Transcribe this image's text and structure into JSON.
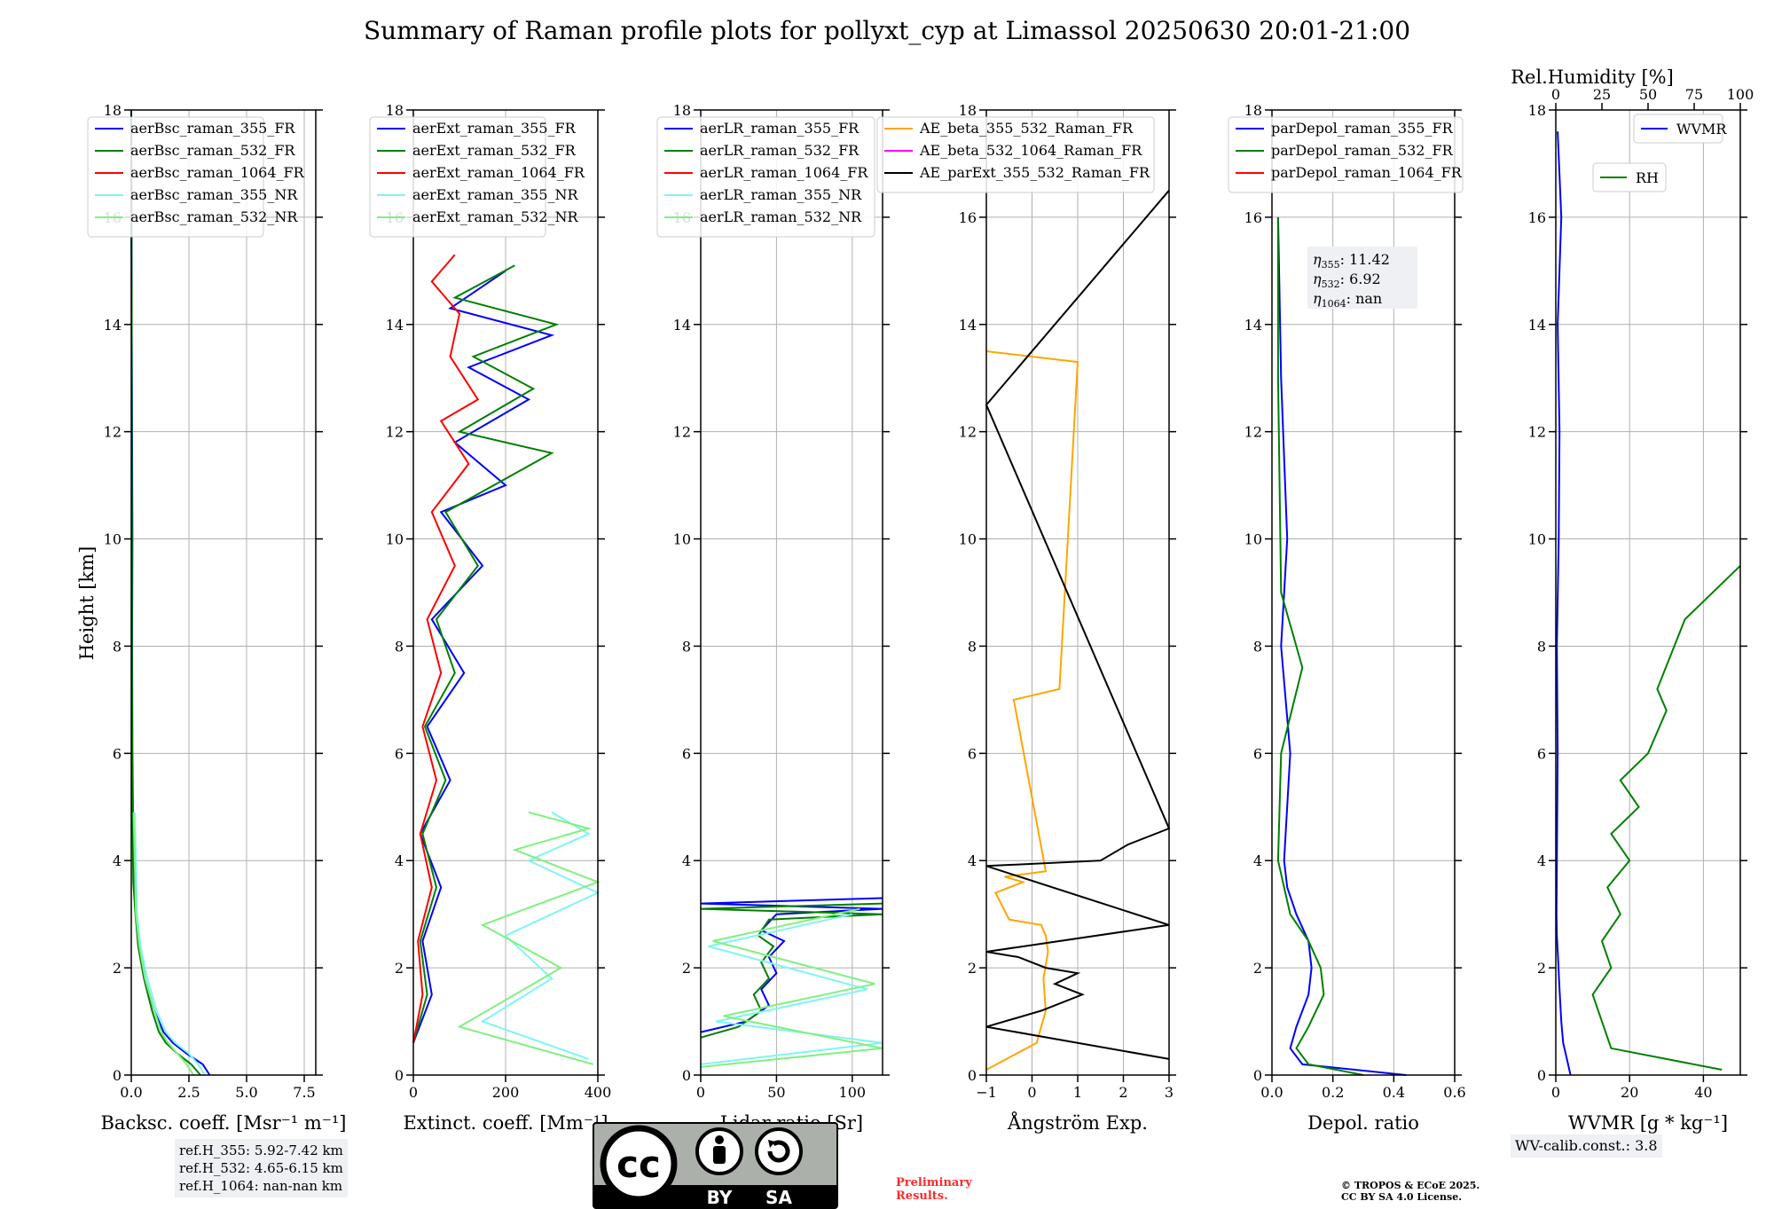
{
  "title": "Summary of Raman profile plots for pollyxt_cyp at Limassol 20250630 20:01-21:00",
  "colors": {
    "blue": "#0000ff",
    "green": "#008000",
    "red": "#ff0000",
    "cyan": "#7ff5f0",
    "lightgreen": "#80f080",
    "orange": "#ffa500",
    "magenta": "#ff00ff",
    "black": "#000000"
  },
  "chart_data": [
    {
      "type": "line",
      "panel": "backscatter",
      "ylabel": "Height [km]",
      "ylim": [
        0,
        18
      ],
      "yticks": [
        "0",
        "2",
        "4",
        "6",
        "8",
        "10",
        "12",
        "14",
        "16",
        "18"
      ],
      "xlabel": "Backsc. coeff. [Msr⁻¹ m⁻¹]",
      "xlim": [
        0,
        8
      ],
      "xticks": [
        "0.0",
        "2.5",
        "5.0",
        "7.5"
      ],
      "xtick_values": [
        0,
        2.5,
        5.0,
        7.5
      ],
      "legend_position": "top-left",
      "series": [
        {
          "name": "aerBsc_raman_355_FR",
          "color": "blue",
          "x": [
            3.4,
            3.1,
            2.4,
            1.8,
            1.4,
            1.0,
            0.6,
            0.35,
            0.2,
            0.1,
            0.08,
            0.05,
            0.04,
            0.05,
            0.03,
            0.02,
            0.01,
            0.0
          ],
          "y": [
            0.0,
            0.2,
            0.4,
            0.6,
            0.8,
            1.2,
            1.8,
            2.4,
            3.0,
            3.6,
            4.5,
            6,
            8,
            10,
            12.8,
            14,
            16,
            18
          ]
        },
        {
          "name": "aerBsc_raman_532_FR",
          "color": "green",
          "x": [
            3.0,
            2.6,
            2.0,
            1.5,
            1.2,
            0.9,
            0.55,
            0.3,
            0.18,
            0.09,
            0.06,
            0.04,
            0.03,
            0.03,
            0.02,
            0.02,
            0.01,
            0.0
          ],
          "y": [
            0.0,
            0.2,
            0.4,
            0.6,
            0.8,
            1.2,
            1.8,
            2.4,
            3.0,
            3.6,
            4.5,
            6,
            8,
            10,
            12.8,
            14,
            16,
            18
          ]
        },
        {
          "name": "aerBsc_raman_1064_FR",
          "color": "red",
          "x": [],
          "y": []
        },
        {
          "name": "aerBsc_raman_355_NR",
          "color": "cyan",
          "x": [
            3.2,
            2.9,
            2.5,
            1.9,
            1.5,
            1.1,
            0.7,
            0.4,
            0.25,
            0.2,
            0.15
          ],
          "y": [
            0.0,
            0.2,
            0.4,
            0.6,
            0.8,
            1.2,
            1.8,
            2.4,
            3.0,
            4.0,
            4.9
          ]
        },
        {
          "name": "aerBsc_raman_532_NR",
          "color": "lightgreen",
          "x": [
            2.7,
            2.4,
            2.0,
            1.6,
            1.3,
            1.0,
            0.6,
            0.35,
            0.2,
            0.15,
            0.1
          ],
          "y": [
            0.0,
            0.2,
            0.4,
            0.6,
            0.8,
            1.2,
            1.8,
            2.4,
            3.0,
            4.0,
            4.9
          ]
        }
      ]
    },
    {
      "type": "line",
      "panel": "extinction",
      "ylim": [
        0,
        18
      ],
      "yticks": [
        "0",
        "2",
        "4",
        "6",
        "8",
        "10",
        "12",
        "14",
        "16",
        "18"
      ],
      "xlabel": "Extinct. coeff. [Mm⁻¹]",
      "xlim": [
        0,
        400
      ],
      "xticks": [
        "0",
        "200",
        "400"
      ],
      "xtick_values": [
        0,
        200,
        400
      ],
      "legend_position": "top-left",
      "series": [
        {
          "name": "aerExt_raman_355_FR",
          "color": "blue",
          "x": [
            0,
            40,
            20,
            60,
            15,
            80,
            30,
            110,
            40,
            150,
            60,
            200,
            90,
            250,
            120,
            300,
            80,
            200
          ],
          "y": [
            0.6,
            1.5,
            2.5,
            3.5,
            4.5,
            5.5,
            6.5,
            7.5,
            8.5,
            9.5,
            10.5,
            11.0,
            11.8,
            12.6,
            13.2,
            13.8,
            14.3,
            15.0
          ]
        },
        {
          "name": "aerExt_raman_532_FR",
          "color": "green",
          "x": [
            0,
            30,
            15,
            50,
            20,
            70,
            25,
            90,
            50,
            140,
            70,
            300,
            100,
            260,
            130,
            310,
            90,
            220
          ],
          "y": [
            0.6,
            1.5,
            2.5,
            3.5,
            4.5,
            5.5,
            6.5,
            7.5,
            8.5,
            9.5,
            10.5,
            11.6,
            12.0,
            12.8,
            13.4,
            14.0,
            14.5,
            15.1
          ]
        },
        {
          "name": "aerExt_raman_1064_FR",
          "color": "red",
          "x": [
            0,
            20,
            10,
            40,
            15,
            50,
            20,
            60,
            30,
            90,
            40,
            120,
            60,
            140,
            80,
            100,
            40,
            90
          ],
          "y": [
            0.6,
            1.5,
            2.5,
            3.5,
            4.5,
            5.5,
            6.5,
            7.5,
            8.5,
            9.5,
            10.5,
            11.4,
            12.2,
            12.6,
            13.4,
            14.2,
            14.8,
            15.3
          ]
        },
        {
          "name": "aerExt_raman_355_NR",
          "color": "cyan",
          "x": [
            380,
            150,
            300,
            200,
            400,
            250,
            380,
            300
          ],
          "y": [
            0.3,
            1.0,
            1.8,
            2.6,
            3.4,
            4.0,
            4.5,
            4.9
          ]
        },
        {
          "name": "aerExt_raman_532_NR",
          "color": "lightgreen",
          "x": [
            390,
            100,
            320,
            150,
            400,
            220,
            380,
            250
          ],
          "y": [
            0.2,
            0.9,
            2.0,
            2.8,
            3.6,
            4.2,
            4.6,
            4.9
          ]
        }
      ]
    },
    {
      "type": "line",
      "panel": "lidar_ratio",
      "ylim": [
        0,
        18
      ],
      "yticks": [
        "0",
        "2",
        "4",
        "6",
        "8",
        "10",
        "12",
        "14",
        "16",
        "18"
      ],
      "xlabel": "Lidar ratio [Sr]",
      "xlim": [
        0,
        120
      ],
      "xticks": [
        "0",
        "50",
        "100"
      ],
      "xtick_values": [
        0,
        50,
        100
      ],
      "legend_position": "top-left",
      "series": [
        {
          "name": "aerLR_raman_355_FR",
          "color": "blue",
          "x": [
            0,
            30,
            45,
            40,
            50,
            45,
            55,
            40,
            50,
            120,
            0,
            120
          ],
          "y": [
            0.8,
            1.0,
            1.3,
            1.6,
            1.9,
            2.2,
            2.5,
            2.7,
            3.0,
            3.1,
            3.2,
            3.3
          ]
        },
        {
          "name": "aerLR_raman_532_FR",
          "color": "green",
          "x": [
            0,
            25,
            40,
            35,
            45,
            40,
            48,
            38,
            45,
            120,
            0,
            120
          ],
          "y": [
            0.7,
            0.9,
            1.2,
            1.5,
            1.8,
            2.1,
            2.4,
            2.6,
            2.9,
            3.0,
            3.1,
            3.2
          ]
        },
        {
          "name": "aerLR_raman_1064_FR",
          "color": "red",
          "x": [],
          "y": []
        },
        {
          "name": "aerLR_raman_355_NR",
          "color": "cyan",
          "x": [
            0,
            120,
            10,
            110,
            5,
            100
          ],
          "y": [
            0.2,
            0.6,
            1.0,
            1.6,
            2.4,
            3.0
          ]
        },
        {
          "name": "aerLR_raman_532_NR",
          "color": "lightgreen",
          "x": [
            0,
            120,
            15,
            115,
            8,
            105
          ],
          "y": [
            0.15,
            0.5,
            1.1,
            1.7,
            2.5,
            3.1
          ]
        }
      ]
    },
    {
      "type": "line",
      "panel": "angstrom",
      "ylim": [
        0,
        18
      ],
      "yticks": [
        "0",
        "2",
        "4",
        "6",
        "8",
        "10",
        "12",
        "14",
        "16",
        "18"
      ],
      "xlabel": "Ångström Exp.",
      "xlim": [
        -1,
        3
      ],
      "xticks": [
        "−1",
        "0",
        "1",
        "2",
        "3"
      ],
      "xtick_values": [
        -1,
        0,
        1,
        2,
        3
      ],
      "legend_position": "top-left",
      "series": [
        {
          "name": "AE_beta_355_532_Raman_FR",
          "color": "orange",
          "x": [
            -1.0,
            0.1,
            0.3,
            0.25,
            0.35,
            0.3,
            0.2,
            -0.5,
            -0.8,
            -0.2,
            -0.6,
            0.3,
            -0.4,
            0.6,
            1.0,
            -1.0
          ],
          "y": [
            0.1,
            0.6,
            1.2,
            1.8,
            2.3,
            2.6,
            2.8,
            2.9,
            3.4,
            3.6,
            3.7,
            3.8,
            7.0,
            7.2,
            13.3,
            13.5
          ]
        },
        {
          "name": "AE_beta_532_1064_Raman_FR",
          "color": "magenta",
          "x": [],
          "y": []
        },
        {
          "name": "AE_parExt_355_532_Raman_FR",
          "color": "black",
          "x": [
            3.0,
            -1.0,
            0.2,
            1.1,
            0.5,
            1.0,
            0.3,
            -0.3,
            -1.0,
            3.0,
            -1.0,
            1.5,
            2.1,
            3.0,
            -1.0,
            3.0
          ],
          "y": [
            0.3,
            0.9,
            1.2,
            1.5,
            1.7,
            1.9,
            2.0,
            2.2,
            2.3,
            2.8,
            3.9,
            4.0,
            4.3,
            4.6,
            12.5,
            16.5
          ]
        }
      ]
    },
    {
      "type": "line",
      "panel": "depolarization",
      "ylim": [
        0,
        18
      ],
      "yticks": [
        "0",
        "2",
        "4",
        "6",
        "8",
        "10",
        "12",
        "14",
        "16",
        "18"
      ],
      "xlabel": "Depol. ratio",
      "xlim": [
        0.0,
        0.6
      ],
      "xticks": [
        "0.0",
        "0.2",
        "0.4",
        "0.6"
      ],
      "xtick_values": [
        0.0,
        0.2,
        0.4,
        0.6
      ],
      "legend_position": "top-left",
      "series": [
        {
          "name": "parDepol_raman_355_FR",
          "color": "blue",
          "x": [
            0.44,
            0.1,
            0.06,
            0.08,
            0.12,
            0.13,
            0.12,
            0.08,
            0.05,
            0.04,
            0.06,
            0.03,
            0.05,
            0.03,
            0.02
          ],
          "y": [
            0.0,
            0.2,
            0.5,
            0.9,
            1.5,
            2.0,
            2.5,
            3.0,
            3.5,
            4.0,
            6.0,
            8.0,
            10.0,
            13.0,
            16.0
          ]
        },
        {
          "name": "parDepol_raman_532_FR",
          "color": "green",
          "x": [
            0.3,
            0.12,
            0.08,
            0.12,
            0.17,
            0.16,
            0.12,
            0.06,
            0.04,
            0.02,
            0.03,
            0.1,
            0.03,
            0.02,
            0.02
          ],
          "y": [
            0.0,
            0.2,
            0.5,
            0.9,
            1.5,
            2.0,
            2.5,
            3.0,
            3.5,
            4.0,
            6.0,
            7.6,
            9.0,
            13.0,
            16.0
          ]
        },
        {
          "name": "parDepol_raman_1064_FR",
          "color": "red",
          "x": [],
          "y": []
        }
      ],
      "annotations": [
        "11.42",
        "6.92",
        "nan"
      ]
    },
    {
      "type": "line",
      "panel": "water_vapor",
      "ylim": [
        0,
        18
      ],
      "yticks": [
        "0",
        "2",
        "4",
        "6",
        "8",
        "10",
        "12",
        "14",
        "16",
        "18"
      ],
      "xlabel": "WVMR [g * kg⁻¹]",
      "xlim": [
        0,
        50
      ],
      "xticks": [
        "0",
        "20",
        "40"
      ],
      "xtick_values": [
        0,
        20,
        40
      ],
      "x2label": "Rel.Humidity [%]",
      "x2lim": [
        0,
        100
      ],
      "x2ticks": [
        "0",
        "25",
        "50",
        "75",
        "100"
      ],
      "x2tick_values": [
        0,
        25,
        50,
        75,
        100
      ],
      "legend_position": "top-right",
      "series": [
        {
          "name": "WVMR",
          "color": "blue",
          "axis": "bottom",
          "x": [
            4.0,
            3.0,
            2.0,
            1.5,
            1.0,
            0.6,
            0.3,
            0.2,
            0.5,
            0.3,
            0.8,
            1.0,
            0.5,
            1.5,
            0.5
          ],
          "y": [
            0.0,
            0.3,
            0.6,
            1.0,
            1.6,
            2.2,
            2.6,
            3.0,
            6.0,
            8.0,
            10.0,
            12.0,
            14.0,
            16.0,
            17.6
          ]
        },
        {
          "name": "RH",
          "color": "green",
          "axis": "top",
          "x": [
            90,
            30,
            25,
            20,
            30,
            25,
            35,
            28,
            40,
            30,
            45,
            35,
            50,
            60,
            55,
            70,
            100
          ],
          "y": [
            0.1,
            0.5,
            1.0,
            1.5,
            2.0,
            2.5,
            3.0,
            3.5,
            4.0,
            4.5,
            5.0,
            5.5,
            6.0,
            6.8,
            7.2,
            8.5,
            9.5
          ]
        }
      ]
    }
  ],
  "legends": {
    "bsc": [
      "aerBsc_raman_355_FR",
      "aerBsc_raman_532_FR",
      "aerBsc_raman_1064_FR",
      "aerBsc_raman_355_NR",
      "aerBsc_raman_532_NR"
    ],
    "ext": [
      "aerExt_raman_355_FR",
      "aerExt_raman_532_FR",
      "aerExt_raman_1064_FR",
      "aerExt_raman_355_NR",
      "aerExt_raman_532_NR"
    ],
    "lr": [
      "aerLR_raman_355_FR",
      "aerLR_raman_532_FR",
      "aerLR_raman_1064_FR",
      "aerLR_raman_355_NR",
      "aerLR_raman_532_NR"
    ],
    "ae": [
      "AE_beta_355_532_Raman_FR",
      "AE_beta_532_1064_Raman_FR",
      "AE_parExt_355_532_Raman_FR"
    ],
    "dep": [
      "parDepol_raman_355_FR",
      "parDepol_raman_532_FR",
      "parDepol_raman_1064_FR"
    ],
    "wv": [
      "WVMR",
      "RH"
    ]
  },
  "eta": {
    "eta355": {
      "sym": "η",
      "sub": "355",
      "value": ": 11.42"
    },
    "eta532": {
      "sym": "η",
      "sub": "532",
      "value": ": 6.92"
    },
    "eta1064": {
      "sym": "η",
      "sub": "1064",
      "value": ": nan"
    }
  },
  "refH": {
    "line1": "ref.H_355: 5.92-7.42 km",
    "line2": "ref.H_532: 4.65-6.15 km",
    "line3": "ref.H_1064: nan-nan km"
  },
  "wv_calib": "WV-calib.const.: 3.8",
  "license": {
    "by": "BY",
    "sa": "SA",
    "cc": "cc"
  },
  "preliminary": {
    "line1": "Preliminary",
    "line2": "Results."
  },
  "copyright": {
    "line1": "© TROPOS & ECoE 2025.",
    "line2": "CC BY SA 4.0 License."
  }
}
